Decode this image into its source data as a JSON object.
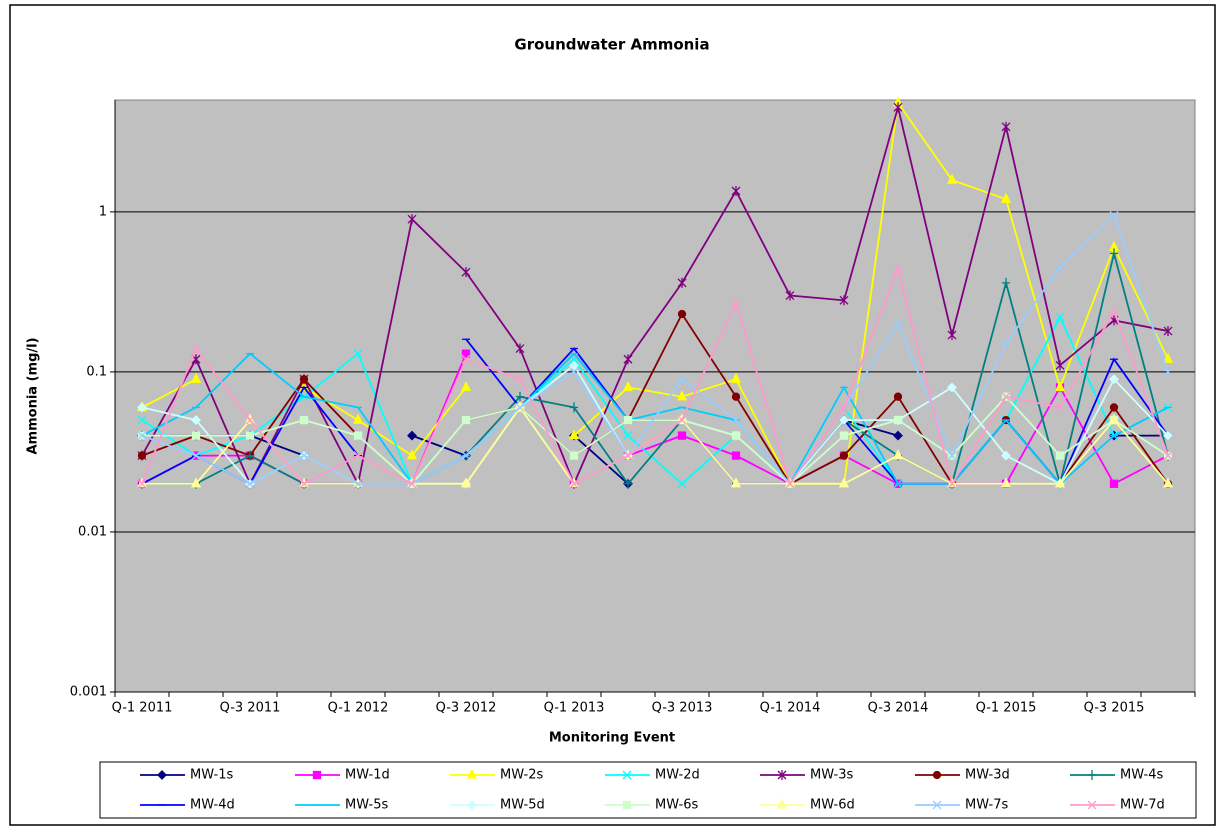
{
  "chart_data": {
    "type": "line",
    "title": "Groundwater Ammonia",
    "x_label": "Monitoring Event",
    "y_label": "Ammonia (mg/l)",
    "categories": [
      "Q-1 2011",
      null,
      "Q-3 2011",
      null,
      "Q-1 2012",
      null,
      "Q-3 2012",
      null,
      "Q-1 2013",
      null,
      "Q-3 2013",
      null,
      "Q-1 2014",
      null,
      "Q-3 2014",
      null,
      "Q-1 2015",
      null,
      "Q-3 2015",
      null
    ],
    "y_scale": "log",
    "ylim": [
      0.001,
      5
    ],
    "yticks": [
      0.001,
      0.01,
      0.1,
      1
    ],
    "grid": true,
    "series": [
      {
        "name": "MW-1s",
        "color": "#000080",
        "marker": "diamond",
        "values": [
          0.04,
          0.04,
          0.04,
          0.03,
          null,
          0.04,
          0.03,
          null,
          0.04,
          0.02,
          null,
          null,
          null,
          0.05,
          0.04,
          null,
          null,
          null,
          0.04,
          0.04
        ]
      },
      {
        "name": "MW-1d",
        "color": "#ff00ff",
        "marker": "square",
        "values": [
          0.02,
          0.03,
          0.03,
          0.02,
          0.02,
          0.02,
          0.13,
          null,
          0.02,
          0.03,
          0.04,
          0.03,
          0.02,
          0.03,
          0.02,
          0.02,
          0.02,
          0.08,
          0.02,
          0.03
        ]
      },
      {
        "name": "MW-2s",
        "color": "#ffff00",
        "marker": "triangle",
        "values": [
          0.06,
          0.09,
          null,
          0.08,
          0.05,
          0.03,
          0.08,
          null,
          0.04,
          0.08,
          0.07,
          0.09,
          0.02,
          0.02,
          4.8,
          1.58,
          1.2,
          0.08,
          0.6,
          0.12
        ]
      },
      {
        "name": "MW-2d",
        "color": "#00ffff",
        "marker": "x",
        "values": [
          0.05,
          0.03,
          0.04,
          0.07,
          0.13,
          0.02,
          0.03,
          0.06,
          0.12,
          0.04,
          0.02,
          0.04,
          0.02,
          0.06,
          0.02,
          0.02,
          0.05,
          0.22,
          0.04,
          0.06
        ]
      },
      {
        "name": "MW-3s",
        "color": "#800080",
        "marker": "asterisk",
        "values": [
          0.03,
          0.12,
          0.02,
          0.09,
          0.02,
          0.9,
          0.42,
          0.14,
          0.02,
          0.12,
          0.36,
          1.35,
          0.3,
          0.28,
          4.5,
          0.17,
          3.4,
          0.11,
          0.21,
          0.18
        ]
      },
      {
        "name": "MW-3d",
        "color": "#800000",
        "marker": "circle",
        "values": [
          0.03,
          0.04,
          0.03,
          0.09,
          0.04,
          null,
          0.05,
          0.06,
          0.03,
          0.05,
          0.23,
          0.07,
          0.02,
          0.03,
          0.07,
          0.02,
          0.05,
          0.02,
          0.06,
          0.02
        ]
      },
      {
        "name": "MW-4s",
        "color": "#008080",
        "marker": "plus",
        "values": [
          0.02,
          0.02,
          0.03,
          0.02,
          0.02,
          0.02,
          0.03,
          0.07,
          0.06,
          0.02,
          0.05,
          null,
          0.02,
          0.05,
          0.03,
          0.02,
          0.36,
          0.02,
          0.55,
          0.03
        ]
      },
      {
        "name": "MW-4d",
        "color": "#0000ff",
        "marker": "dash",
        "values": [
          0.02,
          0.03,
          0.02,
          0.08,
          0.03,
          null,
          0.16,
          0.06,
          0.14,
          0.05,
          0.05,
          0.02,
          0.02,
          0.05,
          0.02,
          0.02,
          0.05,
          0.02,
          0.12,
          0.04
        ]
      },
      {
        "name": "MW-5s",
        "color": "#00ccff",
        "marker": "dash",
        "values": [
          0.04,
          0.06,
          0.13,
          0.07,
          0.06,
          0.02,
          0.03,
          0.06,
          0.13,
          0.05,
          0.06,
          0.05,
          0.02,
          0.08,
          0.02,
          0.02,
          0.05,
          0.02,
          0.04,
          0.06
        ]
      },
      {
        "name": "MW-5d",
        "color": "#ccffff",
        "marker": "diamond",
        "values": [
          0.06,
          0.05,
          0.02,
          0.03,
          0.02,
          0.02,
          0.02,
          0.06,
          0.11,
          0.03,
          0.05,
          0.04,
          0.02,
          0.05,
          0.05,
          0.08,
          0.03,
          0.02,
          0.09,
          0.04
        ]
      },
      {
        "name": "MW-6s",
        "color": "#ccffcc",
        "marker": "square",
        "values": [
          0.04,
          0.04,
          0.04,
          0.05,
          0.04,
          0.02,
          0.05,
          0.06,
          0.03,
          0.05,
          0.05,
          0.04,
          0.02,
          0.04,
          0.05,
          0.03,
          0.07,
          0.03,
          0.05,
          0.03
        ]
      },
      {
        "name": "MW-6d",
        "color": "#ffff99",
        "marker": "triangle",
        "values": [
          0.02,
          0.02,
          0.05,
          0.02,
          0.02,
          0.02,
          0.02,
          0.06,
          0.02,
          0.03,
          0.05,
          0.02,
          0.02,
          0.02,
          0.03,
          0.02,
          0.02,
          0.02,
          0.05,
          0.02
        ]
      },
      {
        "name": "MW-7s",
        "color": "#99ccff",
        "marker": "x",
        "values": [
          0.04,
          0.03,
          0.02,
          0.03,
          0.02,
          0.02,
          0.03,
          0.06,
          0.1,
          0.03,
          0.09,
          0.05,
          0.02,
          0.06,
          0.2,
          0.03,
          0.15,
          0.45,
          0.95,
          0.1
        ]
      },
      {
        "name": "MW-7d",
        "color": "#ff99cc",
        "marker": "x",
        "values": [
          0.02,
          0.14,
          0.05,
          0.02,
          0.03,
          0.02,
          0.12,
          0.09,
          0.02,
          0.03,
          0.05,
          0.27,
          0.02,
          0.06,
          0.44,
          0.02,
          0.07,
          0.06,
          0.24,
          0.03
        ]
      }
    ]
  }
}
